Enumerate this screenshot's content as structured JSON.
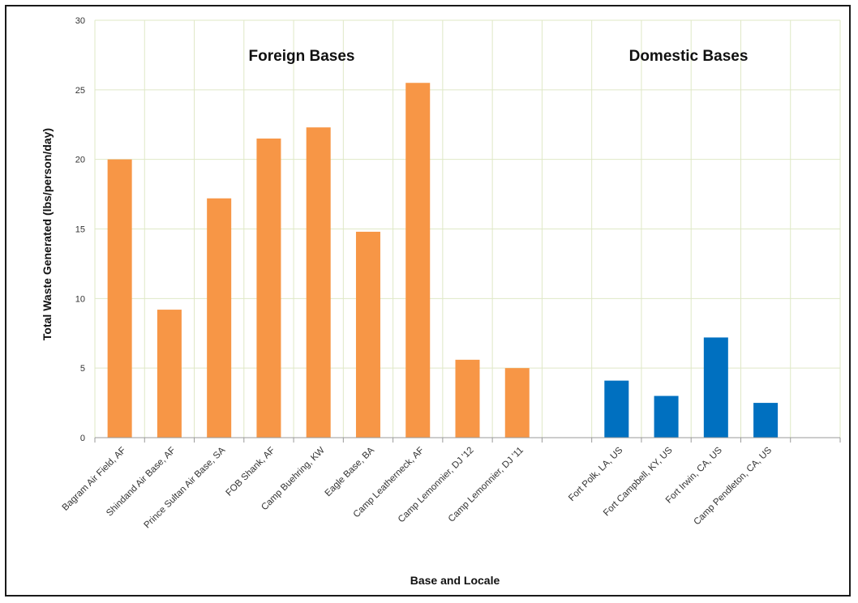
{
  "chart_data": {
    "type": "bar",
    "title": "",
    "xlabel": "Base and Locale",
    "ylabel": "Total Waste Generated (lbs/person/day)",
    "ylim": [
      0,
      30
    ],
    "yticks": [
      0,
      5,
      10,
      15,
      20,
      25,
      30
    ],
    "grid": true,
    "legend": "none",
    "categories": [
      "Bagram Air Field, AF",
      "Shindand Air Base, AF",
      "Prince Sultan Air Base, SA",
      "FOB Shank, AF",
      "Camp Buehring, KW",
      "Eagle Base, BA",
      "Camp Leatherneck, AF",
      "Camp Lemonnier, DJ '12",
      "Camp Lemonnier, DJ '11",
      "",
      "Fort Polk, LA, US",
      "Fort Campbell, KY, US",
      "Fort Irwin, CA, US",
      "Camp Pendleton, CA, US",
      ""
    ],
    "series": [
      {
        "color": "#f79646",
        "values": [
          20.0,
          9.2,
          17.2,
          21.5,
          22.3,
          14.8,
          25.5,
          5.6,
          5.0,
          null,
          null,
          null,
          null,
          null,
          null
        ]
      },
      {
        "color": "#0070c0",
        "values": [
          null,
          null,
          null,
          null,
          null,
          null,
          null,
          null,
          null,
          null,
          4.1,
          3.0,
          7.2,
          2.5,
          null
        ]
      }
    ],
    "annotations": [
      "Foreign Bases",
      "Domestic Bases"
    ]
  }
}
